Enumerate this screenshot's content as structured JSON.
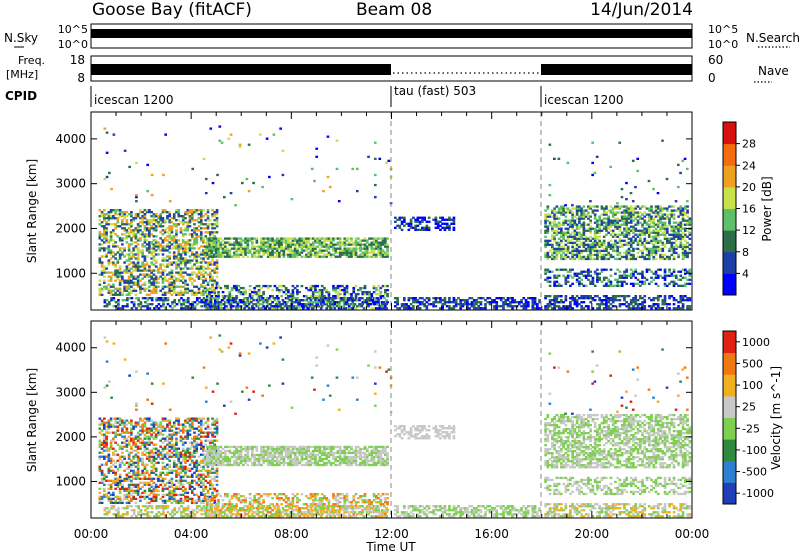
{
  "header": {
    "station": "Goose Bay (fitACF)",
    "beam": "Beam 08",
    "date": "14/Jun/2014"
  },
  "top_panels": {
    "nsky": {
      "label": "N.Sky",
      "left_ticks": [
        "10^5",
        "10^0"
      ],
      "right_ticks": [
        "10^5",
        "10^0"
      ],
      "right_label": "N.Search"
    },
    "freq": {
      "label_line1": "Freq.",
      "label_line2": "[MHz]",
      "left_ticks": [
        "18",
        "8"
      ],
      "right_ticks": [
        "60",
        "0"
      ],
      "right_label": "Nave"
    },
    "cpid": {
      "label": "CPID",
      "segments": [
        {
          "name": "icescan 1200",
          "start_hour": 0,
          "end_hour": 12
        },
        {
          "name": "tau (fast) 503",
          "start_hour": 12,
          "end_hour": 18
        },
        {
          "name": "icescan 1200",
          "start_hour": 18,
          "end_hour": 24
        }
      ]
    }
  },
  "chart_data": [
    {
      "type": "heatmap",
      "title": "",
      "xlabel": "Time UT",
      "ylabel": "Slant Range [km]",
      "x_ticks": [
        "00:00",
        "04:00",
        "08:00",
        "12:00",
        "16:00",
        "20:00",
        "00:00"
      ],
      "x_range_hours": [
        0,
        24
      ],
      "y_ticks": [
        1000,
        2000,
        3000,
        4000
      ],
      "ylim": [
        180,
        4600
      ],
      "colorbar": {
        "label": "Power [dB]",
        "ticks": [
          "4",
          "8",
          "12",
          "16",
          "20",
          "24",
          "28"
        ],
        "range": [
          0,
          32
        ],
        "colors": [
          "#0000ff",
          "#1e3fa8",
          "#2c6e4a",
          "#5dbf6a",
          "#c9e04a",
          "#f0a020",
          "#f36d10",
          "#d91010"
        ]
      }
    },
    {
      "type": "heatmap",
      "title": "",
      "xlabel": "Time UT",
      "ylabel": "Slant Range [km]",
      "x_ticks": [
        "00:00",
        "04:00",
        "08:00",
        "12:00",
        "16:00",
        "20:00",
        "00:00"
      ],
      "x_range_hours": [
        0,
        24
      ],
      "y_ticks": [
        1000,
        2000,
        3000,
        4000
      ],
      "ylim": [
        180,
        4600
      ],
      "colorbar": {
        "label": "Velocity [m s^-1]",
        "ticks": [
          "1000",
          "500",
          "100",
          "25",
          "-25",
          "-100",
          "-500",
          "-1000"
        ],
        "colors": [
          "#1e3fb8",
          "#2e7fd0",
          "#2f8a40",
          "#7fcf50",
          "#c8c8c8",
          "#f0b020",
          "#f07810",
          "#e02010"
        ]
      }
    }
  ]
}
